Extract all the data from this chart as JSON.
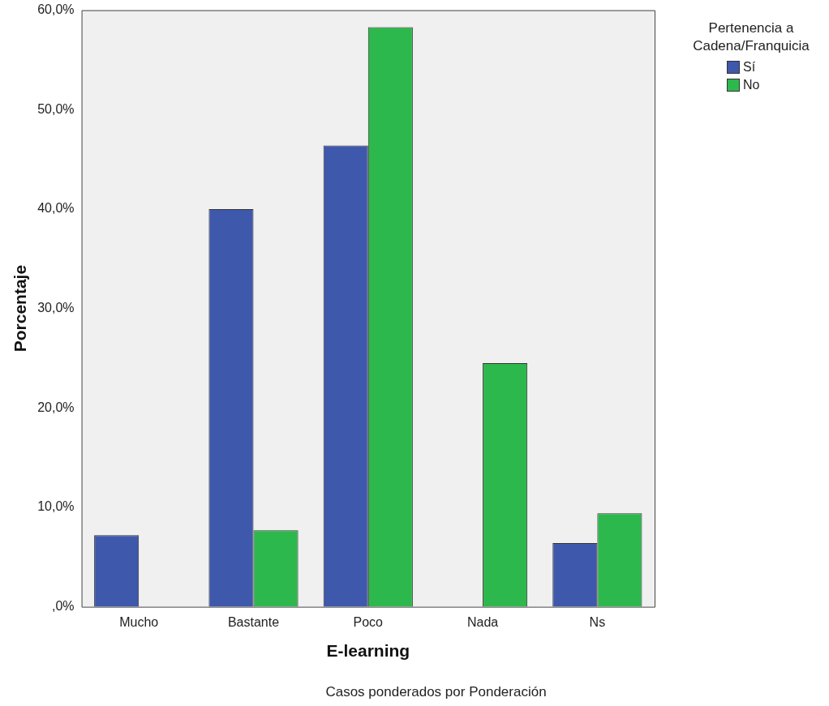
{
  "chart_data": {
    "type": "bar",
    "xlabel": "E-learning",
    "ylabel": "Porcentaje",
    "legend_title": "Pertenencia a Cadena/Franquicia",
    "legend": "top right",
    "grid": false,
    "categories": [
      "Mucho",
      "Bastante",
      "Poco",
      "Nada",
      "Ns"
    ],
    "series": [
      {
        "name": "Sí",
        "color": "#3e58ac",
        "values": [
          7.2,
          40.0,
          46.4,
          0,
          6.4
        ]
      },
      {
        "name": "No",
        "color": "#2db84d",
        "values": [
          0,
          7.7,
          58.3,
          24.5,
          9.4
        ]
      }
    ],
    "ylim": [
      0,
      60
    ],
    "yticks": [
      {
        "value": 0,
        "label": ",0%"
      },
      {
        "value": 10,
        "label": "10,0%"
      },
      {
        "value": 20,
        "label": "20,0%"
      },
      {
        "value": 30,
        "label": "30,0%"
      },
      {
        "value": 40,
        "label": "40,0%"
      },
      {
        "value": 50,
        "label": "50,0%"
      },
      {
        "value": 60,
        "label": "60,0%"
      }
    ],
    "annotations": [
      "Casos ponderados por Ponderación"
    ]
  }
}
